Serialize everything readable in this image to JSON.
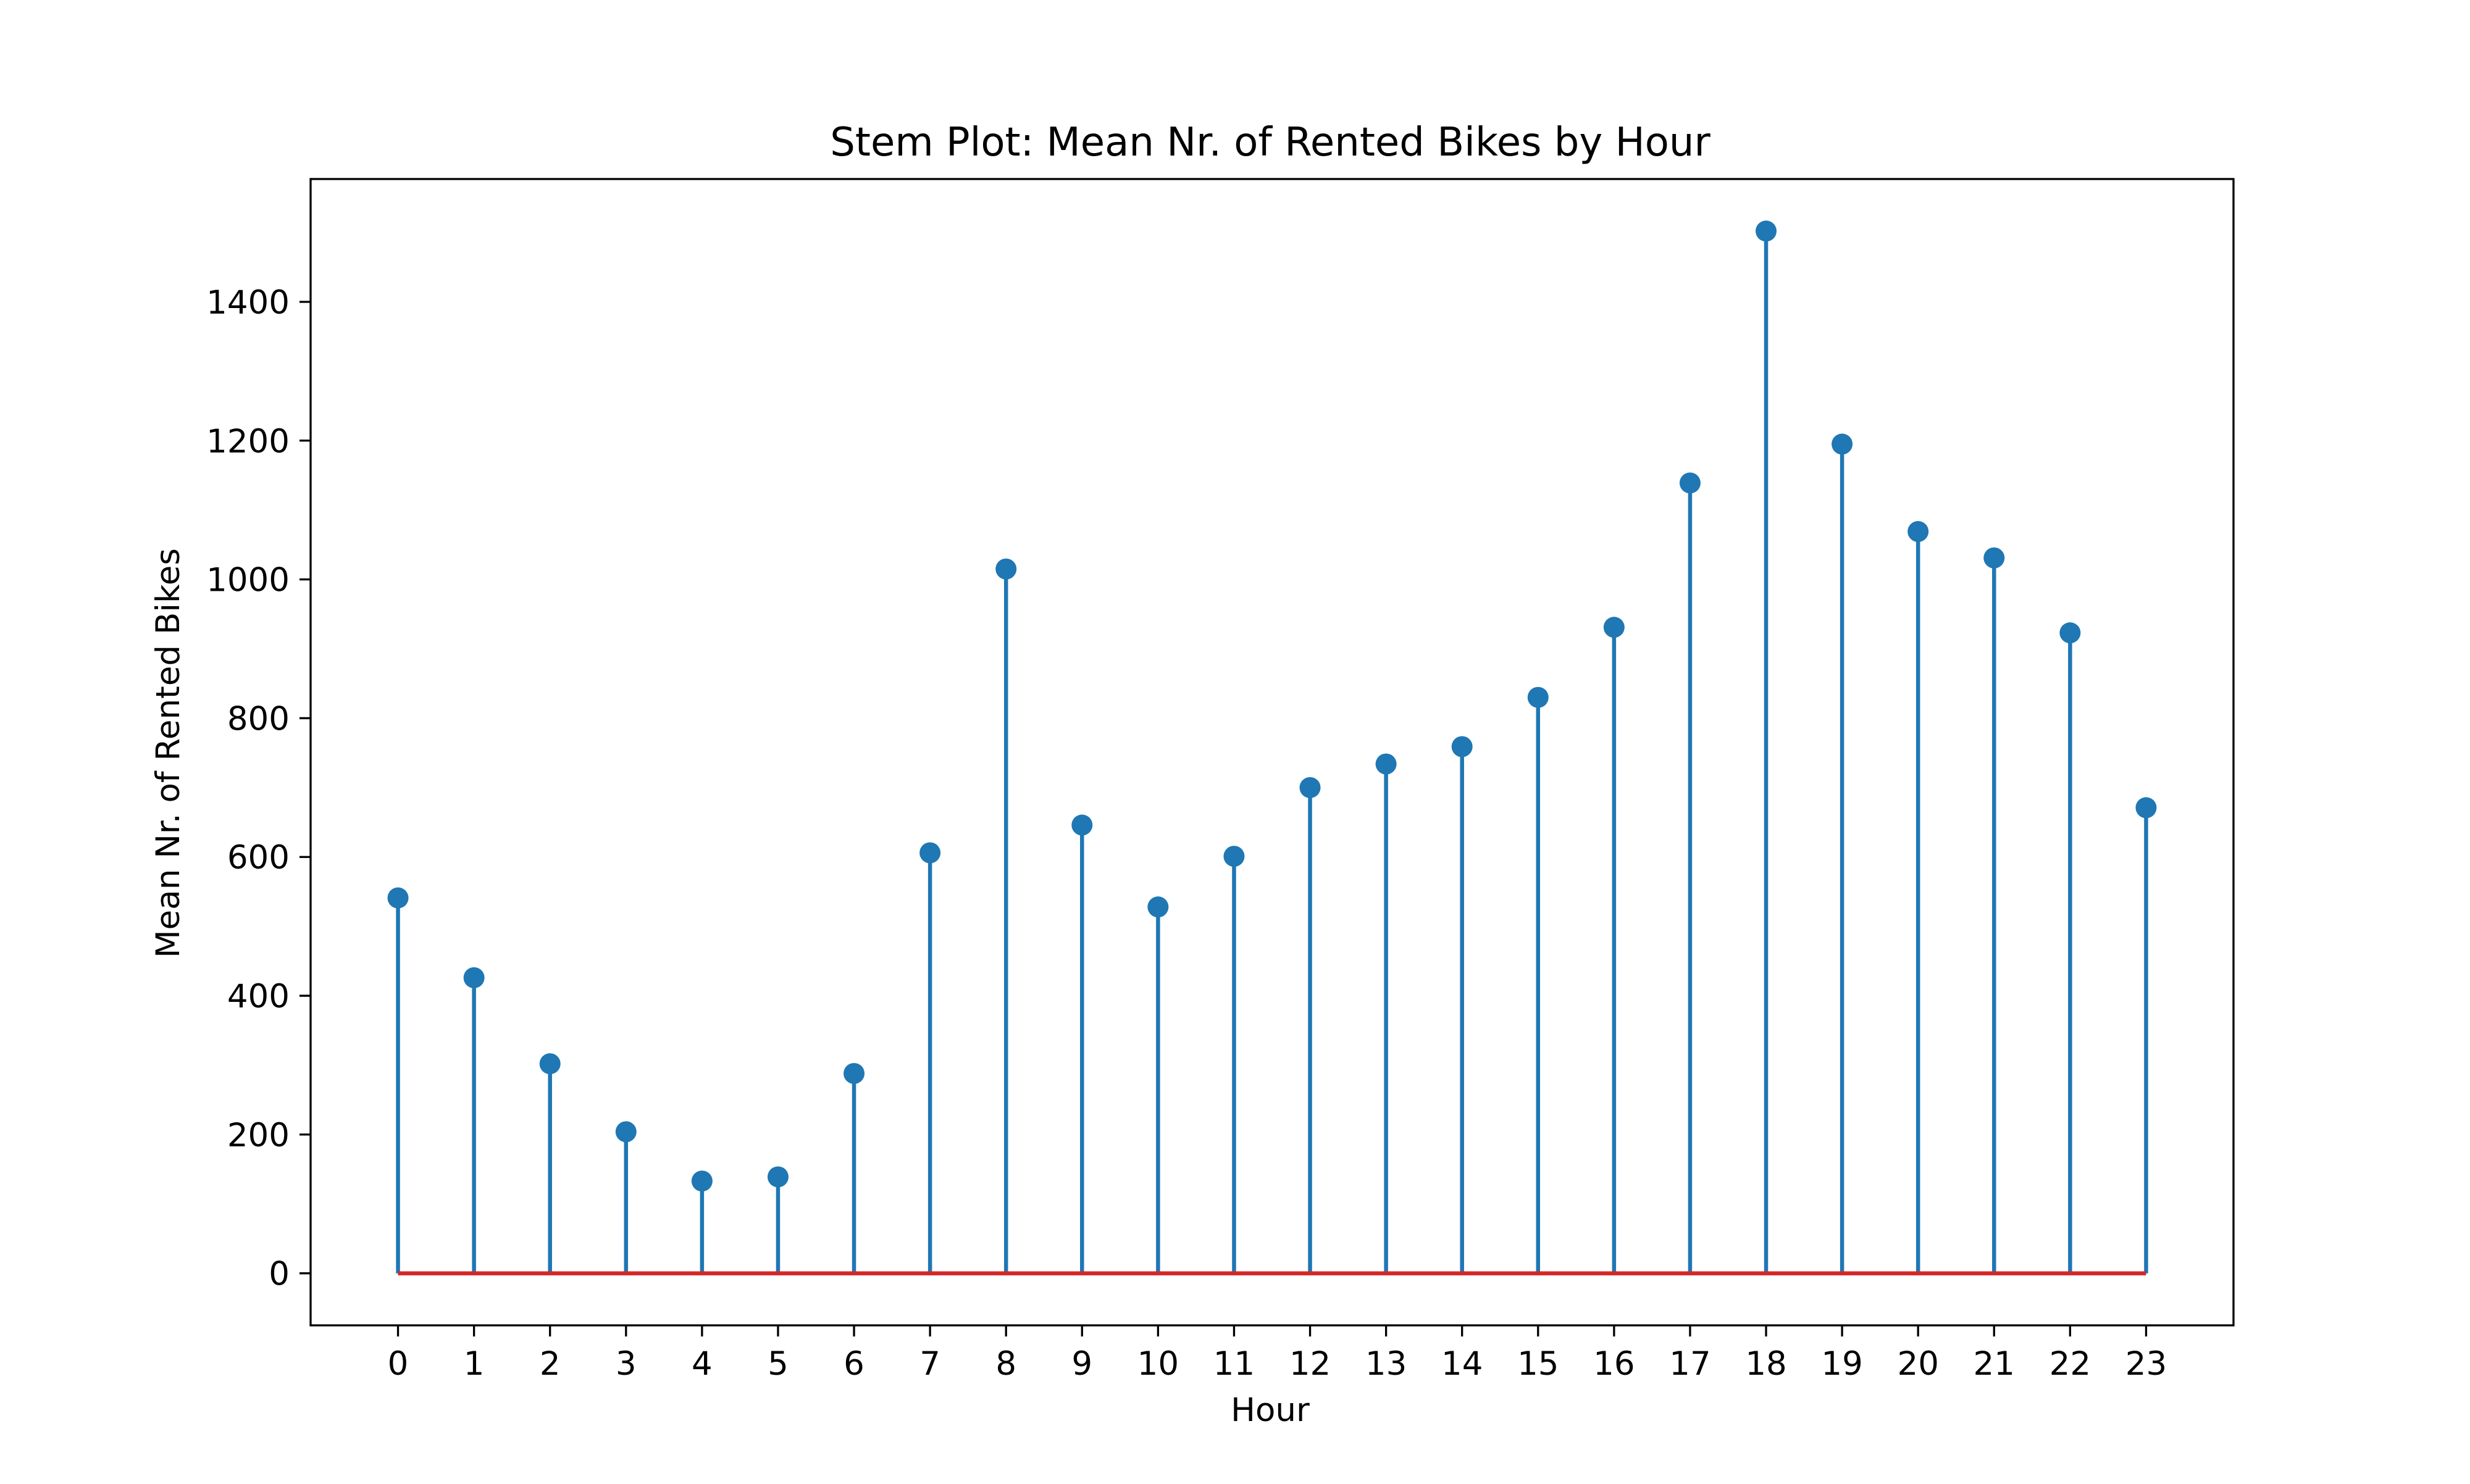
{
  "chart_data": {
    "type": "stem",
    "title": "Stem Plot: Mean Nr. of Rented Bikes by Hour",
    "xlabel": "Hour",
    "ylabel": "Mean Nr. of Rented Bikes",
    "x": [
      0,
      1,
      2,
      3,
      4,
      5,
      6,
      7,
      8,
      9,
      10,
      11,
      12,
      13,
      14,
      15,
      16,
      17,
      18,
      19,
      20,
      21,
      22,
      23
    ],
    "x_tick_labels": [
      "0",
      "1",
      "2",
      "3",
      "4",
      "5",
      "6",
      "7",
      "8",
      "9",
      "10",
      "11",
      "12",
      "13",
      "14",
      "15",
      "16",
      "17",
      "18",
      "19",
      "20",
      "21",
      "22",
      "23"
    ],
    "values": [
      541,
      426,
      302,
      204,
      133,
      139,
      288,
      606,
      1015,
      646,
      528,
      601,
      700,
      734,
      759,
      830,
      931,
      1139,
      1502,
      1195,
      1069,
      1031,
      923,
      671
    ],
    "ylim": [
      -75,
      1577
    ],
    "y_ticks": [
      0,
      200,
      400,
      600,
      800,
      1000,
      1200,
      1400
    ],
    "y_tick_labels": [
      "0",
      "200",
      "400",
      "600",
      "800",
      "1000",
      "1200",
      "1400"
    ],
    "baseline": 0,
    "grid": false,
    "legend": "none",
    "colors": {
      "stem": "#1f77b4",
      "marker": "#1f77b4",
      "baseline": "#d62728"
    }
  }
}
